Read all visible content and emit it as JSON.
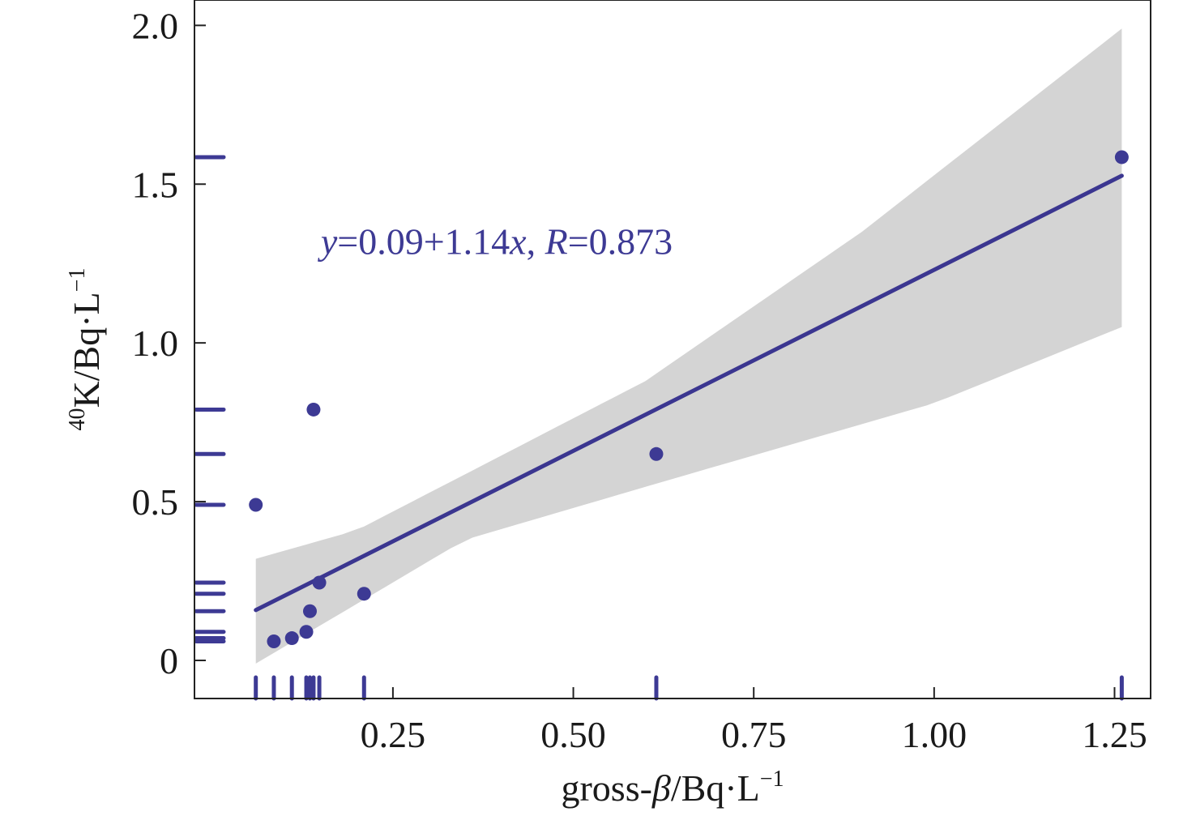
{
  "chart_data": {
    "type": "scatter",
    "title": "",
    "xlabel_parts": {
      "main": "gross-",
      "beta": "β",
      "unit": "/Bq·L",
      "exp": "−1"
    },
    "ylabel_parts": {
      "sup": "40",
      "main": "K/Bq·L",
      "exp": "−1"
    },
    "xlim": [
      -0.025,
      1.3
    ],
    "ylim": [
      -0.12,
      2.08
    ],
    "xticks": [
      0.25,
      0.5,
      0.75,
      1.0,
      1.25
    ],
    "xtick_labels": [
      "0.25",
      "0.50",
      "0.75",
      "1.00",
      "1.25"
    ],
    "yticks": [
      0,
      0.5,
      1.0,
      1.5,
      2.0
    ],
    "ytick_labels": [
      "0",
      "0.5",
      "1.0",
      "1.5",
      "2.0"
    ],
    "grid": false,
    "series": [
      {
        "points": [
          {
            "x": 0.06,
            "y": 0.49
          },
          {
            "x": 0.085,
            "y": 0.06
          },
          {
            "x": 0.11,
            "y": 0.07
          },
          {
            "x": 0.13,
            "y": 0.09
          },
          {
            "x": 0.135,
            "y": 0.155
          },
          {
            "x": 0.14,
            "y": 0.79
          },
          {
            "x": 0.148,
            "y": 0.245
          },
          {
            "x": 0.21,
            "y": 0.21
          },
          {
            "x": 0.615,
            "y": 0.65
          },
          {
            "x": 1.26,
            "y": 1.585
          }
        ]
      }
    ],
    "regression": {
      "intercept": 0.09,
      "slope": 1.14,
      "x_range": [
        0.06,
        1.26
      ],
      "ci_lower": [
        [
          0.06,
          -0.01
        ],
        [
          0.35,
          0.38
        ],
        [
          0.65,
          0.58
        ],
        [
          1.0,
          0.81
        ],
        [
          1.26,
          1.05
        ]
      ],
      "ci_upper": [
        [
          0.06,
          0.32
        ],
        [
          0.2,
          0.41
        ],
        [
          0.6,
          0.88
        ],
        [
          0.9,
          1.35
        ],
        [
          1.26,
          1.99
        ]
      ]
    },
    "rug_x": [
      0.06,
      0.085,
      0.11,
      0.13,
      0.135,
      0.14,
      0.148,
      0.21,
      0.615,
      1.26
    ],
    "rug_y": [
      0.06,
      0.07,
      0.09,
      0.155,
      0.21,
      0.245,
      0.49,
      0.65,
      0.79,
      1.585
    ],
    "annotation": {
      "y_var": "y",
      "eq": "=0.09+1.14",
      "x_var": "x",
      "sep": ", ",
      "r_var": "R",
      "r_val": "=0.873",
      "at": [
        0.15,
        1.28
      ]
    },
    "colors": {
      "points": "#3d3a94",
      "line": "#3b3690",
      "band": "#d4d4d4",
      "axis": "#222222"
    }
  }
}
